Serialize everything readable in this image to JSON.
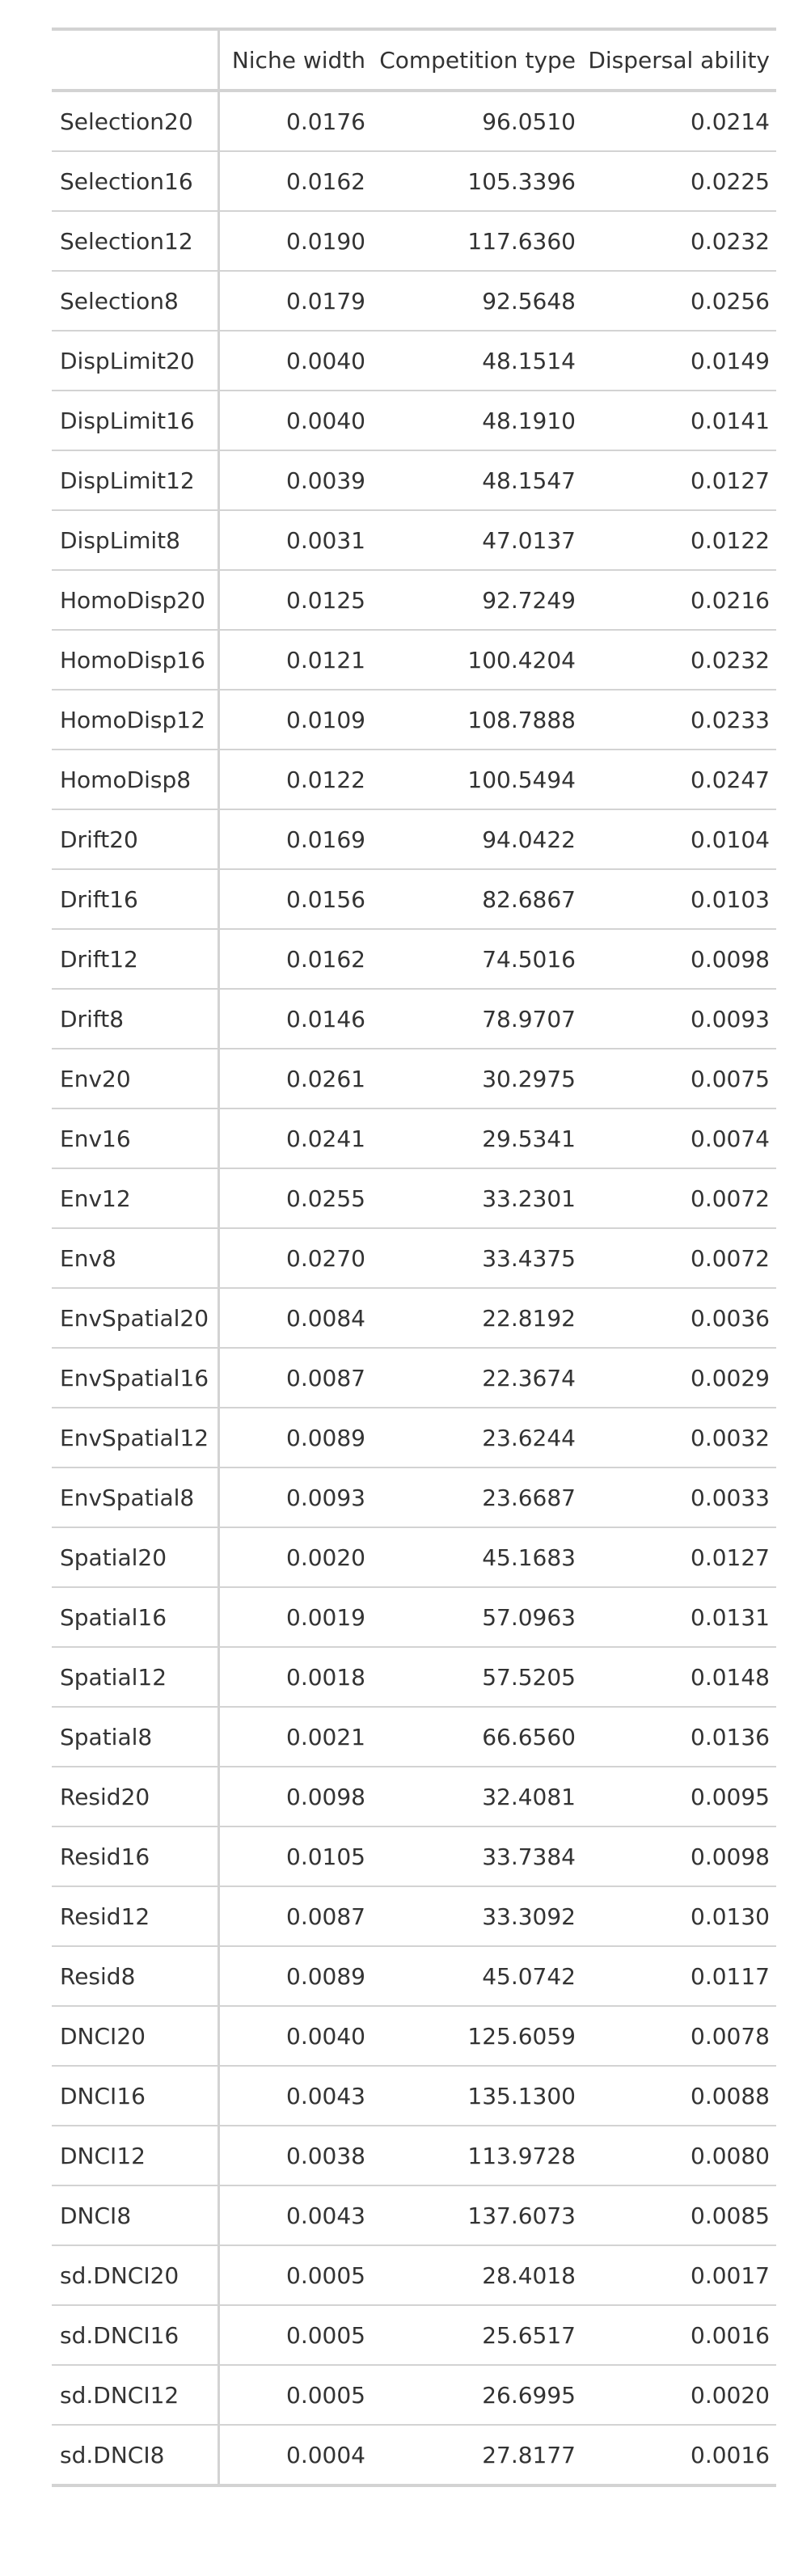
{
  "table": {
    "headers": [
      "",
      "Niche width",
      "Competition type",
      "Dispersal ability"
    ],
    "rows": [
      [
        "Selection20",
        "0.0176",
        "96.0510",
        "0.0214"
      ],
      [
        "Selection16",
        "0.0162",
        "105.3396",
        "0.0225"
      ],
      [
        "Selection12",
        "0.0190",
        "117.6360",
        "0.0232"
      ],
      [
        "Selection8",
        "0.0179",
        "92.5648",
        "0.0256"
      ],
      [
        "DispLimit20",
        "0.0040",
        "48.1514",
        "0.0149"
      ],
      [
        "DispLimit16",
        "0.0040",
        "48.1910",
        "0.0141"
      ],
      [
        "DispLimit12",
        "0.0039",
        "48.1547",
        "0.0127"
      ],
      [
        "DispLimit8",
        "0.0031",
        "47.0137",
        "0.0122"
      ],
      [
        "HomoDisp20",
        "0.0125",
        "92.7249",
        "0.0216"
      ],
      [
        "HomoDisp16",
        "0.0121",
        "100.4204",
        "0.0232"
      ],
      [
        "HomoDisp12",
        "0.0109",
        "108.7888",
        "0.0233"
      ],
      [
        "HomoDisp8",
        "0.0122",
        "100.5494",
        "0.0247"
      ],
      [
        "Drift20",
        "0.0169",
        "94.0422",
        "0.0104"
      ],
      [
        "Drift16",
        "0.0156",
        "82.6867",
        "0.0103"
      ],
      [
        "Drift12",
        "0.0162",
        "74.5016",
        "0.0098"
      ],
      [
        "Drift8",
        "0.0146",
        "78.9707",
        "0.0093"
      ],
      [
        "Env20",
        "0.0261",
        "30.2975",
        "0.0075"
      ],
      [
        "Env16",
        "0.0241",
        "29.5341",
        "0.0074"
      ],
      [
        "Env12",
        "0.0255",
        "33.2301",
        "0.0072"
      ],
      [
        "Env8",
        "0.0270",
        "33.4375",
        "0.0072"
      ],
      [
        "EnvSpatial20",
        "0.0084",
        "22.8192",
        "0.0036"
      ],
      [
        "EnvSpatial16",
        "0.0087",
        "22.3674",
        "0.0029"
      ],
      [
        "EnvSpatial12",
        "0.0089",
        "23.6244",
        "0.0032"
      ],
      [
        "EnvSpatial8",
        "0.0093",
        "23.6687",
        "0.0033"
      ],
      [
        "Spatial20",
        "0.0020",
        "45.1683",
        "0.0127"
      ],
      [
        "Spatial16",
        "0.0019",
        "57.0963",
        "0.0131"
      ],
      [
        "Spatial12",
        "0.0018",
        "57.5205",
        "0.0148"
      ],
      [
        "Spatial8",
        "0.0021",
        "66.6560",
        "0.0136"
      ],
      [
        "Resid20",
        "0.0098",
        "32.4081",
        "0.0095"
      ],
      [
        "Resid16",
        "0.0105",
        "33.7384",
        "0.0098"
      ],
      [
        "Resid12",
        "0.0087",
        "33.3092",
        "0.0130"
      ],
      [
        "Resid8",
        "0.0089",
        "45.0742",
        "0.0117"
      ],
      [
        "DNCI20",
        "0.0040",
        "125.6059",
        "0.0078"
      ],
      [
        "DNCI16",
        "0.0043",
        "135.1300",
        "0.0088"
      ],
      [
        "DNCI12",
        "0.0038",
        "113.9728",
        "0.0080"
      ],
      [
        "DNCI8",
        "0.0043",
        "137.6073",
        "0.0085"
      ],
      [
        "sd.DNCI20",
        "0.0005",
        "28.4018",
        "0.0017"
      ],
      [
        "sd.DNCI16",
        "0.0005",
        "25.6517",
        "0.0016"
      ],
      [
        "sd.DNCI12",
        "0.0005",
        "26.6995",
        "0.0020"
      ],
      [
        "sd.DNCI8",
        "0.0004",
        "27.8177",
        "0.0016"
      ]
    ]
  }
}
